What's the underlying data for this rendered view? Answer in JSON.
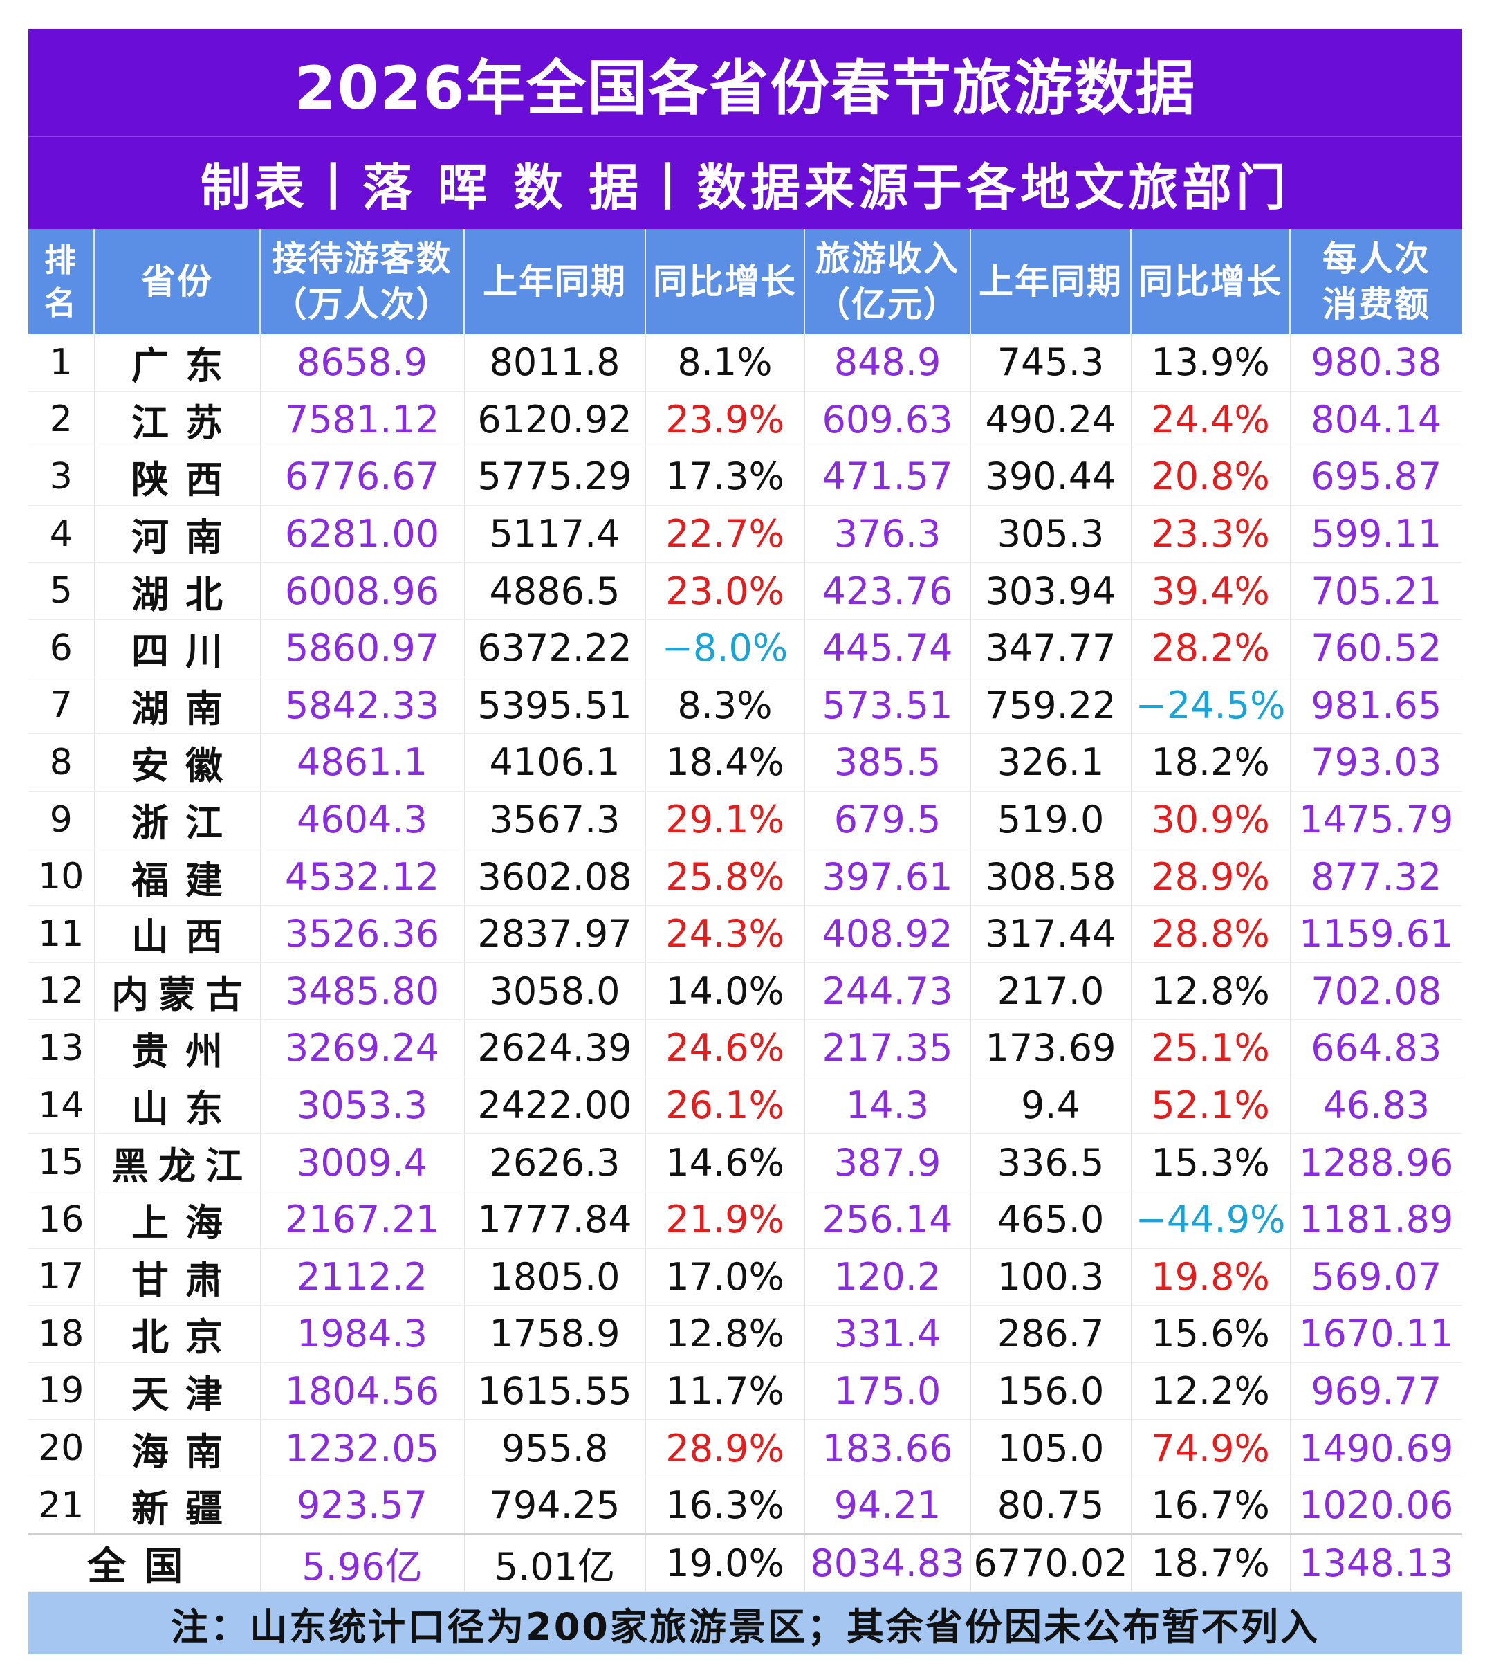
{
  "title": "2026年全国各省份春节旅游数据",
  "subtitle": "制表丨落 晖 数 据丨数据来源于各地文旅部门",
  "headers": {
    "rank": [
      "排",
      "名"
    ],
    "province": "省份",
    "visitors": [
      "接待游客数",
      "（万人次）"
    ],
    "visitors_prev": "上年同期",
    "visitors_growth": "同比增长",
    "revenue": [
      "旅游收入",
      "（亿元）"
    ],
    "revenue_prev": "上年同期",
    "revenue_growth": "同比增长",
    "per_capita": [
      "每人次",
      "消费额"
    ]
  },
  "colors": {
    "banner": "#6a0dd6",
    "header": "#5b8fe6",
    "note_bar": "#a4c6f0",
    "purple_value": "#8a2be2",
    "red_growth": "#e51c1c",
    "cyan_negative": "#1aa3d9"
  },
  "rows": [
    {
      "rank": "1",
      "province": "广东",
      "visitors": "8658.9",
      "visitors_prev": "8011.8",
      "visitors_growth": "8.1%",
      "revenue": "848.9",
      "revenue_prev": "745.3",
      "revenue_growth": "13.9%",
      "per_capita": "980.38"
    },
    {
      "rank": "2",
      "province": "江苏",
      "visitors": "7581.12",
      "visitors_prev": "6120.92",
      "visitors_growth": "23.9%",
      "revenue": "609.63",
      "revenue_prev": "490.24",
      "revenue_growth": "24.4%",
      "per_capita": "804.14"
    },
    {
      "rank": "3",
      "province": "陕西",
      "visitors": "6776.67",
      "visitors_prev": "5775.29",
      "visitors_growth": "17.3%",
      "revenue": "471.57",
      "revenue_prev": "390.44",
      "revenue_growth": "20.8%",
      "per_capita": "695.87"
    },
    {
      "rank": "4",
      "province": "河南",
      "visitors": "6281.00",
      "visitors_prev": "5117.4",
      "visitors_growth": "22.7%",
      "revenue": "376.3",
      "revenue_prev": "305.3",
      "revenue_growth": "23.3%",
      "per_capita": "599.11"
    },
    {
      "rank": "5",
      "province": "湖北",
      "visitors": "6008.96",
      "visitors_prev": "4886.5",
      "visitors_growth": "23.0%",
      "revenue": "423.76",
      "revenue_prev": "303.94",
      "revenue_growth": "39.4%",
      "per_capita": "705.21"
    },
    {
      "rank": "6",
      "province": "四川",
      "visitors": "5860.97",
      "visitors_prev": "6372.22",
      "visitors_growth": "−8.0%",
      "revenue": "445.74",
      "revenue_prev": "347.77",
      "revenue_growth": "28.2%",
      "per_capita": "760.52"
    },
    {
      "rank": "7",
      "province": "湖南",
      "visitors": "5842.33",
      "visitors_prev": "5395.51",
      "visitors_growth": "8.3%",
      "revenue": "573.51",
      "revenue_prev": "759.22",
      "revenue_growth": "−24.5%",
      "per_capita": "981.65"
    },
    {
      "rank": "8",
      "province": "安徽",
      "visitors": "4861.1",
      "visitors_prev": "4106.1",
      "visitors_growth": "18.4%",
      "revenue": "385.5",
      "revenue_prev": "326.1",
      "revenue_growth": "18.2%",
      "per_capita": "793.03"
    },
    {
      "rank": "9",
      "province": "浙江",
      "visitors": "4604.3",
      "visitors_prev": "3567.3",
      "visitors_growth": "29.1%",
      "revenue": "679.5",
      "revenue_prev": "519.0",
      "revenue_growth": "30.9%",
      "per_capita": "1475.79"
    },
    {
      "rank": "10",
      "province": "福建",
      "visitors": "4532.12",
      "visitors_prev": "3602.08",
      "visitors_growth": "25.8%",
      "revenue": "397.61",
      "revenue_prev": "308.58",
      "revenue_growth": "28.9%",
      "per_capita": "877.32"
    },
    {
      "rank": "11",
      "province": "山西",
      "visitors": "3526.36",
      "visitors_prev": "2837.97",
      "visitors_growth": "24.3%",
      "revenue": "408.92",
      "revenue_prev": "317.44",
      "revenue_growth": "28.8%",
      "per_capita": "1159.61"
    },
    {
      "rank": "12",
      "province": "内蒙古",
      "visitors": "3485.80",
      "visitors_prev": "3058.0",
      "visitors_growth": "14.0%",
      "revenue": "244.73",
      "revenue_prev": "217.0",
      "revenue_growth": "12.8%",
      "per_capita": "702.08"
    },
    {
      "rank": "13",
      "province": "贵州",
      "visitors": "3269.24",
      "visitors_prev": "2624.39",
      "visitors_growth": "24.6%",
      "revenue": "217.35",
      "revenue_prev": "173.69",
      "revenue_growth": "25.1%",
      "per_capita": "664.83"
    },
    {
      "rank": "14",
      "province": "山东",
      "visitors": "3053.3",
      "visitors_prev": "2422.00",
      "visitors_growth": "26.1%",
      "revenue": "14.3",
      "revenue_prev": "9.4",
      "revenue_growth": "52.1%",
      "per_capita": "46.83"
    },
    {
      "rank": "15",
      "province": "黑龙江",
      "visitors": "3009.4",
      "visitors_prev": "2626.3",
      "visitors_growth": "14.6%",
      "revenue": "387.9",
      "revenue_prev": "336.5",
      "revenue_growth": "15.3%",
      "per_capita": "1288.96"
    },
    {
      "rank": "16",
      "province": "上海",
      "visitors": "2167.21",
      "visitors_prev": "1777.84",
      "visitors_growth": "21.9%",
      "revenue": "256.14",
      "revenue_prev": "465.0",
      "revenue_growth": "−44.9%",
      "per_capita": "1181.89"
    },
    {
      "rank": "17",
      "province": "甘肃",
      "visitors": "2112.2",
      "visitors_prev": "1805.0",
      "visitors_growth": "17.0%",
      "revenue": "120.2",
      "revenue_prev": "100.3",
      "revenue_growth": "19.8%",
      "per_capita": "569.07"
    },
    {
      "rank": "18",
      "province": "北京",
      "visitors": "1984.3",
      "visitors_prev": "1758.9",
      "visitors_growth": "12.8%",
      "revenue": "331.4",
      "revenue_prev": "286.7",
      "revenue_growth": "15.6%",
      "per_capita": "1670.11"
    },
    {
      "rank": "19",
      "province": "天津",
      "visitors": "1804.56",
      "visitors_prev": "1615.55",
      "visitors_growth": "11.7%",
      "revenue": "175.0",
      "revenue_prev": "156.0",
      "revenue_growth": "12.2%",
      "per_capita": "969.77"
    },
    {
      "rank": "20",
      "province": "海南",
      "visitors": "1232.05",
      "visitors_prev": "955.8",
      "visitors_growth": "28.9%",
      "revenue": "183.66",
      "revenue_prev": "105.0",
      "revenue_growth": "74.9%",
      "per_capita": "1490.69"
    },
    {
      "rank": "21",
      "province": "新疆",
      "visitors": "923.57",
      "visitors_prev": "794.25",
      "visitors_growth": "16.3%",
      "revenue": "94.21",
      "revenue_prev": "80.75",
      "revenue_growth": "16.7%",
      "per_capita": "1020.06"
    }
  ],
  "total": {
    "label": "全国",
    "visitors": "5.96亿",
    "visitors_prev": "5.01亿",
    "visitors_growth": "19.0%",
    "revenue": "8034.83",
    "revenue_prev": "6770.02",
    "revenue_growth": "18.7%",
    "per_capita": "1348.13"
  },
  "note": "注：山东统计口径为200家旅游景区；其余省份因未公布暂不列入"
}
